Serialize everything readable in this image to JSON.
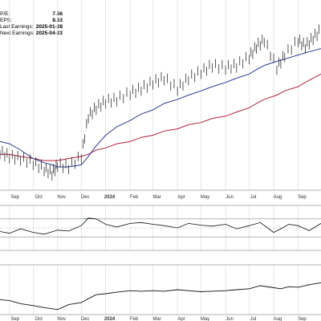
{
  "info_panel": [
    {
      "label": "P/E:",
      "value": "7.56"
    },
    {
      "label": "EPS:",
      "value": "8.53"
    },
    {
      "label": "Last Earnings:",
      "value": "2025-01-28"
    },
    {
      "label": "Next Earnings:",
      "value": "2025-04-23"
    }
  ],
  "colors": {
    "price": "#111111",
    "ma_fast": "#2b3a8f",
    "ma_slow": "#b0213b",
    "rsi_fill": "#3d8a3d",
    "grid": "#d9d9d9",
    "panel_border": "#999999"
  },
  "chart_data": [
    {
      "panel": "price",
      "type": "line",
      "x_ticks": [
        "Sep",
        "Oct",
        "Nov",
        "Dec",
        "2024",
        "Feb",
        "Mar",
        "Apr",
        "May",
        "Jun",
        "Jul",
        "Aug",
        "Sep"
      ],
      "x": [
        "2023-08-20",
        "2023-09-01",
        "2023-09-15",
        "2023-10-01",
        "2023-10-15",
        "2023-10-25",
        "2023-11-01",
        "2023-11-15",
        "2023-12-01",
        "2023-12-10",
        "2023-12-20",
        "2024-01-01",
        "2024-01-15",
        "2024-02-01",
        "2024-02-15",
        "2024-03-01",
        "2024-03-15",
        "2024-04-01",
        "2024-04-15",
        "2024-05-01",
        "2024-05-15",
        "2024-06-01",
        "2024-06-15",
        "2024-07-01",
        "2024-07-10",
        "2024-07-20",
        "2024-08-05",
        "2024-08-15",
        "2024-09-01",
        "2024-09-10",
        "2024-09-20",
        "2024-09-30"
      ],
      "series": [
        {
          "values": [
            58,
            56,
            55,
            53,
            50,
            48,
            52,
            51,
            56,
            75,
            79,
            82,
            83,
            86,
            88,
            91,
            93,
            88,
            93,
            96,
            99,
            98,
            99,
            103,
            108,
            111,
            98,
            104,
            111,
            108,
            112,
            116
          ]
        },
        {
          "values": [
            63,
            62,
            59,
            55,
            53,
            52,
            51,
            51,
            52,
            56,
            61,
            66,
            70,
            73,
            76,
            78,
            81,
            83,
            85,
            87,
            89,
            91,
            93,
            95,
            97,
            99,
            101,
            102,
            104,
            105,
            106,
            107
          ]
        },
        {
          "values": [
            57,
            57,
            56,
            55,
            54,
            54,
            54,
            55,
            56,
            57,
            59,
            60,
            62,
            63,
            65,
            66,
            68,
            69,
            71,
            72,
            74,
            75,
            77,
            79,
            81,
            83,
            85,
            87,
            89,
            91,
            93,
            95
          ]
        }
      ]
    },
    {
      "panel": "oscillator",
      "type": "line",
      "x": [
        "2023-08-20",
        "2023-09-01",
        "2023-09-15",
        "2023-10-01",
        "2023-10-15",
        "2023-11-01",
        "2023-11-15",
        "2023-12-01",
        "2023-12-10",
        "2023-12-20",
        "2024-01-01",
        "2024-01-15",
        "2024-02-01",
        "2024-02-15",
        "2024-03-01",
        "2024-03-15",
        "2024-04-01",
        "2024-04-15",
        "2024-05-01",
        "2024-05-15",
        "2024-06-01",
        "2024-06-15",
        "2024-07-01",
        "2024-07-15",
        "2024-08-01",
        "2024-08-10",
        "2024-08-20",
        "2024-09-01",
        "2024-09-15",
        "2024-09-30"
      ],
      "values": [
        42,
        38,
        48,
        40,
        36,
        45,
        43,
        55,
        72,
        70,
        58,
        52,
        60,
        62,
        58,
        55,
        50,
        60,
        56,
        54,
        58,
        48,
        55,
        62,
        40,
        48,
        58,
        55,
        44,
        60
      ],
      "overbought": 70,
      "oversold": 30,
      "ylim": [
        0,
        100
      ]
    },
    {
      "panel": "cumulative",
      "type": "line",
      "x": [
        "2023-08-20",
        "2023-09-01",
        "2023-09-15",
        "2023-10-01",
        "2023-10-15",
        "2023-11-01",
        "2023-11-15",
        "2023-12-01",
        "2023-12-10",
        "2023-12-20",
        "2024-01-01",
        "2024-01-15",
        "2024-02-01",
        "2024-02-15",
        "2024-03-01",
        "2024-03-15",
        "2024-04-01",
        "2024-04-15",
        "2024-05-01",
        "2024-05-15",
        "2024-06-01",
        "2024-06-15",
        "2024-07-01",
        "2024-07-15",
        "2024-08-01",
        "2024-08-10",
        "2024-08-20",
        "2024-09-01",
        "2024-09-15",
        "2024-09-30"
      ],
      "values": [
        30,
        28,
        22,
        18,
        14,
        10,
        20,
        24,
        32,
        40,
        42,
        45,
        48,
        47,
        48,
        47,
        50,
        48,
        46,
        47,
        48,
        50,
        52,
        58,
        54,
        52,
        56,
        55,
        60,
        64
      ],
      "ylim": [
        0,
        100
      ]
    }
  ]
}
